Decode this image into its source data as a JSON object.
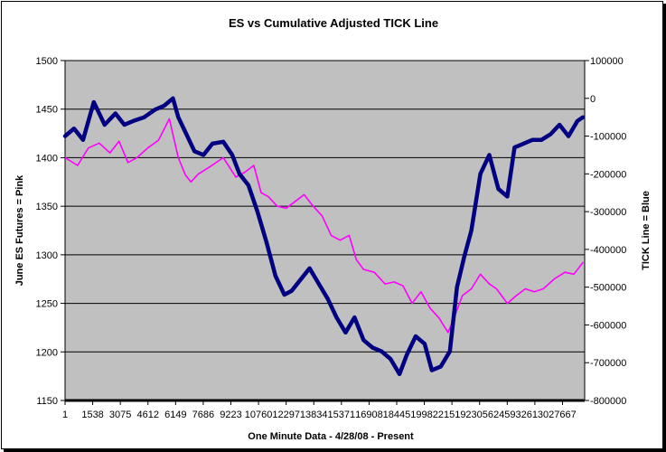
{
  "chart_data": {
    "type": "line",
    "title": "ES vs Cumulative Adjusted TICK Line",
    "xlabel": "One Minute Data - 4/28/08 - Present",
    "ylabel_left": "June ES Futures = Pink",
    "ylabel_right": "TICK Line = Blue",
    "ylim_left": [
      1150,
      1500
    ],
    "ylim_right": [
      -800000,
      100000
    ],
    "yticks_left": [
      "1500",
      "1450",
      "1400",
      "1350",
      "1300",
      "1250",
      "1200",
      "1150"
    ],
    "yticks_right": [
      "100000",
      "0",
      "-100000",
      "-200000",
      "-300000",
      "-400000",
      "-500000",
      "-600000",
      "-700000",
      "-800000"
    ],
    "xticks": [
      "1",
      "1538",
      "3075",
      "4612",
      "6149",
      "7686",
      "9223",
      "10760",
      "12297",
      "13834",
      "15371",
      "16908",
      "18445",
      "19982",
      "21519",
      "23056",
      "24593",
      "26130",
      "27667"
    ],
    "xlim": [
      1,
      28900
    ],
    "series": [
      {
        "name": "June ES Futures",
        "axis": "left",
        "color": "#ff00ff",
        "x": [
          1,
          700,
          1300,
          1900,
          2500,
          3000,
          3500,
          4000,
          4600,
          5200,
          5800,
          6300,
          6700,
          7000,
          7400,
          8000,
          8800,
          9500,
          10000,
          10500,
          10900,
          11300,
          11800,
          12300,
          12800,
          13300,
          13800,
          14300,
          14800,
          15300,
          15800,
          16200,
          16600,
          17200,
          17800,
          18300,
          18800,
          19300,
          19800,
          20300,
          20800,
          21300,
          21700,
          22100,
          22600,
          23100,
          23600,
          24000,
          24600,
          25100,
          25600,
          26100,
          26600,
          27200,
          27800,
          28300,
          28800
        ],
        "values": [
          1400,
          1392,
          1410,
          1415,
          1405,
          1417,
          1395,
          1400,
          1410,
          1418,
          1440,
          1400,
          1382,
          1375,
          1383,
          1390,
          1400,
          1380,
          1385,
          1392,
          1364,
          1360,
          1350,
          1348,
          1355,
          1362,
          1350,
          1340,
          1320,
          1315,
          1320,
          1295,
          1285,
          1282,
          1270,
          1272,
          1268,
          1250,
          1262,
          1245,
          1235,
          1220,
          1238,
          1258,
          1265,
          1280,
          1270,
          1265,
          1250,
          1258,
          1265,
          1262,
          1265,
          1275,
          1282,
          1280,
          1292
        ]
      },
      {
        "name": "Cumulative Adjusted TICK Line",
        "axis": "right",
        "color": "#000080",
        "x": [
          1,
          500,
          1000,
          1600,
          2200,
          2800,
          3300,
          3800,
          4400,
          5000,
          5500,
          6000,
          6300,
          6800,
          7200,
          7700,
          8200,
          8800,
          9300,
          9700,
          10200,
          10700,
          11200,
          11700,
          12200,
          12600,
          13100,
          13600,
          14100,
          14600,
          15100,
          15600,
          16100,
          16600,
          17100,
          17600,
          18100,
          18600,
          19000,
          19500,
          20000,
          20400,
          20900,
          21400,
          21800,
          22200,
          22600,
          23100,
          23600,
          24100,
          24600,
          25000,
          25500,
          26000,
          26500,
          27000,
          27500,
          28000,
          28500,
          28800
        ],
        "values": [
          -100000,
          -80000,
          -110000,
          -10000,
          -70000,
          -40000,
          -70000,
          -60000,
          -50000,
          -30000,
          -20000,
          0,
          -50000,
          -100000,
          -140000,
          -150000,
          -120000,
          -115000,
          -150000,
          -200000,
          -230000,
          -300000,
          -380000,
          -470000,
          -520000,
          -510000,
          -480000,
          -450000,
          -490000,
          -530000,
          -580000,
          -620000,
          -580000,
          -640000,
          -660000,
          -670000,
          -690000,
          -730000,
          -680000,
          -630000,
          -650000,
          -720000,
          -710000,
          -670000,
          -500000,
          -420000,
          -350000,
          -200000,
          -150000,
          -240000,
          -260000,
          -130000,
          -120000,
          -110000,
          -110000,
          -95000,
          -70000,
          -100000,
          -60000,
          -50000
        ]
      }
    ]
  }
}
